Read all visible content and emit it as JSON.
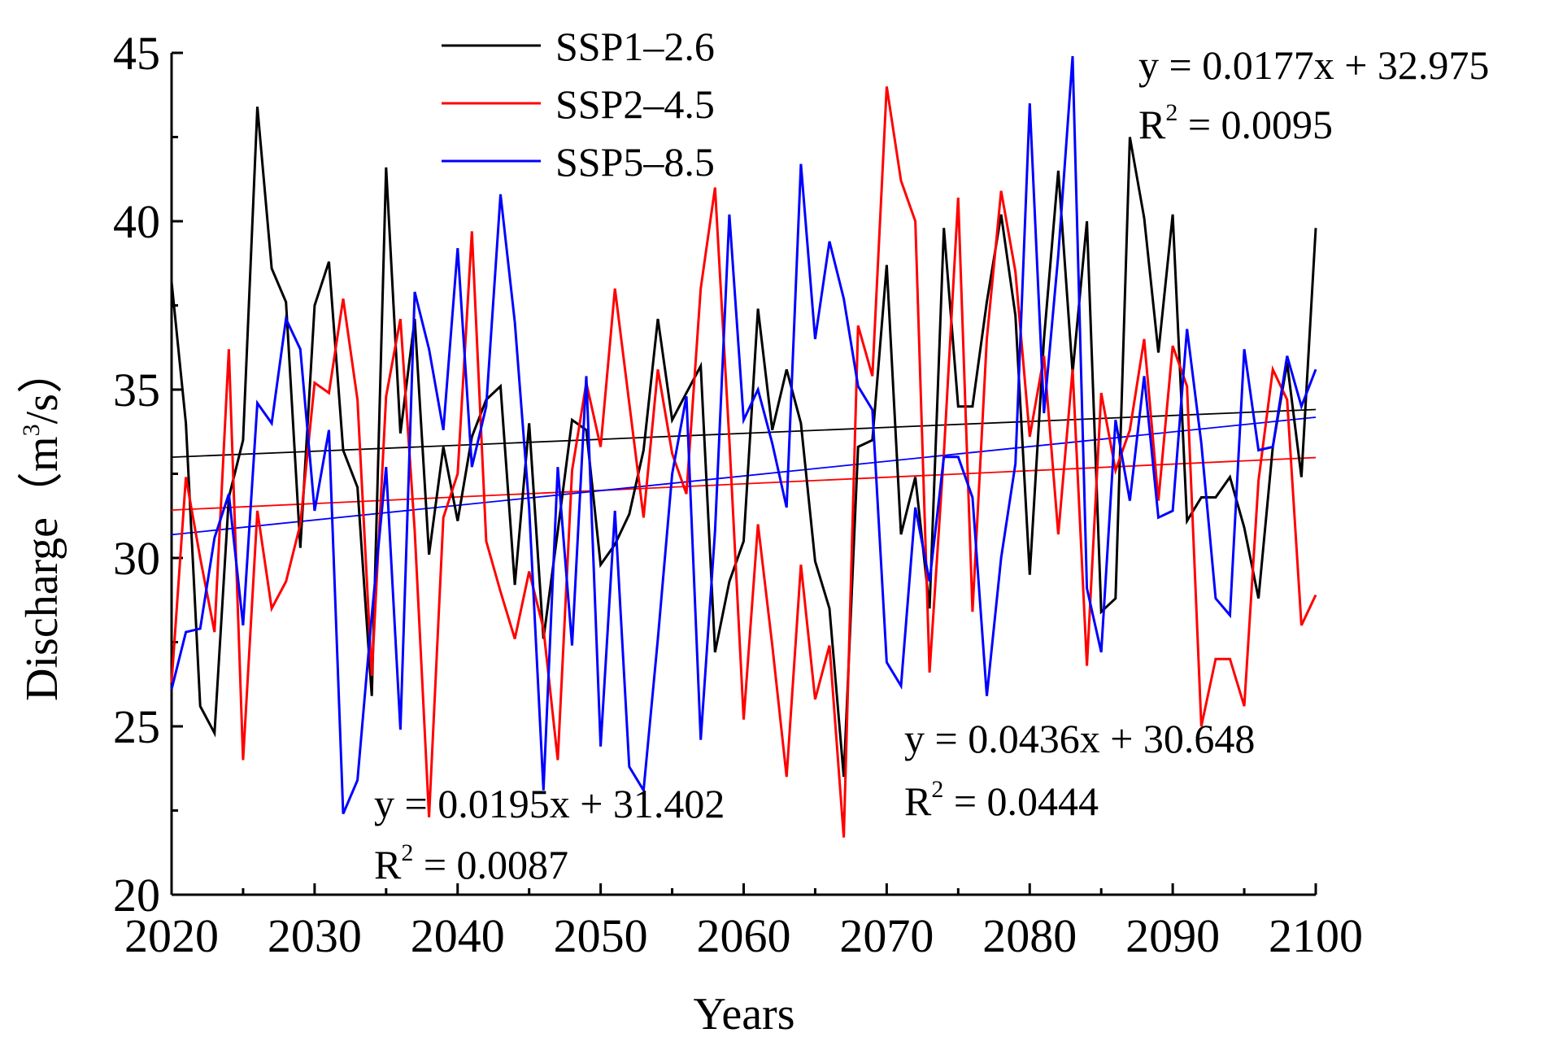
{
  "chart_data": {
    "type": "line",
    "title": "",
    "xlabel": "Years",
    "ylabel": "Discharge",
    "ylabel_unit": {
      "open": "（m",
      "exp": "3",
      "rest": "/s）"
    },
    "xlim": [
      2020,
      2100
    ],
    "ylim": [
      20,
      45
    ],
    "xticks": [
      2020,
      2030,
      2040,
      2050,
      2060,
      2070,
      2080,
      2090,
      2100
    ],
    "yticks": [
      20,
      25,
      30,
      35,
      40,
      45
    ],
    "x": [
      2020,
      2021,
      2022,
      2023,
      2024,
      2025,
      2026,
      2027,
      2028,
      2029,
      2030,
      2031,
      2032,
      2033,
      2034,
      2035,
      2036,
      2037,
      2038,
      2039,
      2040,
      2041,
      2042,
      2043,
      2044,
      2045,
      2046,
      2047,
      2048,
      2049,
      2050,
      2051,
      2052,
      2053,
      2054,
      2055,
      2056,
      2057,
      2058,
      2059,
      2060,
      2061,
      2062,
      2063,
      2064,
      2065,
      2066,
      2067,
      2068,
      2069,
      2070,
      2071,
      2072,
      2073,
      2074,
      2075,
      2076,
      2077,
      2078,
      2079,
      2080,
      2081,
      2082,
      2083,
      2084,
      2085,
      2086,
      2087,
      2088,
      2089,
      2090,
      2091,
      2092,
      2093,
      2094,
      2095,
      2096,
      2097,
      2098,
      2099,
      2100
    ],
    "series": [
      {
        "name": "SSP1–2.6",
        "color": "#000000",
        "values": [
          38.2,
          34.0,
          25.6,
          24.8,
          31.8,
          33.5,
          43.4,
          38.6,
          37.6,
          30.3,
          37.5,
          38.8,
          33.2,
          32.1,
          25.9,
          41.6,
          33.7,
          37.1,
          30.1,
          33.3,
          31.1,
          33.6,
          34.7,
          35.1,
          29.2,
          34.0,
          27.6,
          30.8,
          34.1,
          33.8,
          29.8,
          30.4,
          31.3,
          33.2,
          37.1,
          34.1,
          34.9,
          35.7,
          27.2,
          29.3,
          30.5,
          37.4,
          33.8,
          35.6,
          34.0,
          29.9,
          28.5,
          23.5,
          33.3,
          33.5,
          38.7,
          30.7,
          32.4,
          28.5,
          39.8,
          34.5,
          34.5,
          37.6,
          40.2,
          37.2,
          29.5,
          36.5,
          41.5,
          35.5,
          40.0,
          28.4,
          28.8,
          42.5,
          40.1,
          36.1,
          40.2,
          31.1,
          31.8,
          31.8,
          32.4,
          30.9,
          28.8,
          33.3,
          35.8,
          32.4,
          39.8
        ]
      },
      {
        "name": "SSP2–4.5",
        "color": "#ff0000",
        "values": [
          26.3,
          32.4,
          30.0,
          27.8,
          36.2,
          24.0,
          31.4,
          28.5,
          29.3,
          31.0,
          35.2,
          34.9,
          37.7,
          34.7,
          26.5,
          34.8,
          37.1,
          30.8,
          22.3,
          31.2,
          32.5,
          39.7,
          30.5,
          29.0,
          27.6,
          29.6,
          27.9,
          24.0,
          32.6,
          35.2,
          33.3,
          38.0,
          34.6,
          31.2,
          35.6,
          33.1,
          31.9,
          38.0,
          41.0,
          33.5,
          25.2,
          31.0,
          27.4,
          23.5,
          29.8,
          25.8,
          27.4,
          21.7,
          36.9,
          35.4,
          44.0,
          41.2,
          40.0,
          26.6,
          33.1,
          40.7,
          28.4,
          36.5,
          40.9,
          38.5,
          33.6,
          36.0,
          30.7,
          35.6,
          26.8,
          34.9,
          32.6,
          33.8,
          36.5,
          31.7,
          36.3,
          35.1,
          25.0,
          27.0,
          27.0,
          25.6,
          32.3,
          35.6,
          34.7,
          28.0,
          28.9
        ]
      },
      {
        "name": "SSP5–8.5",
        "color": "#0000ff",
        "values": [
          26.1,
          27.8,
          27.9,
          30.6,
          31.9,
          28.0,
          34.6,
          34.0,
          37.1,
          36.2,
          31.4,
          33.8,
          22.4,
          23.4,
          28.3,
          32.7,
          24.9,
          37.9,
          36.2,
          33.8,
          39.2,
          32.7,
          34.5,
          40.8,
          37.0,
          31.5,
          23.1,
          32.7,
          27.4,
          35.4,
          24.4,
          31.4,
          23.8,
          23.1,
          27.6,
          32.5,
          34.8,
          24.6,
          30.8,
          40.2,
          34.1,
          35.0,
          33.4,
          31.5,
          41.7,
          36.5,
          39.4,
          37.7,
          35.1,
          34.4,
          26.9,
          26.2,
          31.5,
          29.3,
          33.0,
          33.0,
          31.8,
          25.9,
          30.0,
          32.8,
          43.5,
          34.3,
          39.0,
          44.9,
          29.1,
          27.2,
          34.1,
          31.7,
          35.4,
          31.2,
          31.4,
          36.8,
          33.4,
          28.8,
          28.3,
          36.2,
          33.2,
          33.3,
          36.0,
          34.5,
          35.6
        ]
      }
    ],
    "trendlines": [
      {
        "series": "SSP1–2.6",
        "slope": 0.0177,
        "intercept": 32.975,
        "equation": "y = 0.0177x + 32.975",
        "r2_label": "R",
        "r2_exp": "2",
        "r2_value": " = 0.0095",
        "position": "top-right"
      },
      {
        "series": "SSP2–4.5",
        "slope": 0.0195,
        "intercept": 31.402,
        "equation": "y = 0.0195x + 31.402",
        "r2_label": "R",
        "r2_exp": "2",
        "r2_value": " = 0.0087",
        "position": "bottom-left"
      },
      {
        "series": "SSP5–8.5",
        "slope": 0.0436,
        "intercept": 30.648,
        "equation": "y = 0.0436x + 30.648",
        "r2_label": "R",
        "r2_exp": "2",
        "r2_value": " = 0.0444",
        "position": "bottom-center"
      }
    ],
    "legend": {
      "position": "top-left",
      "entries": [
        "SSP1–2.6",
        "SSP2–4.5",
        "SSP5–8.5"
      ]
    },
    "grid": false
  }
}
